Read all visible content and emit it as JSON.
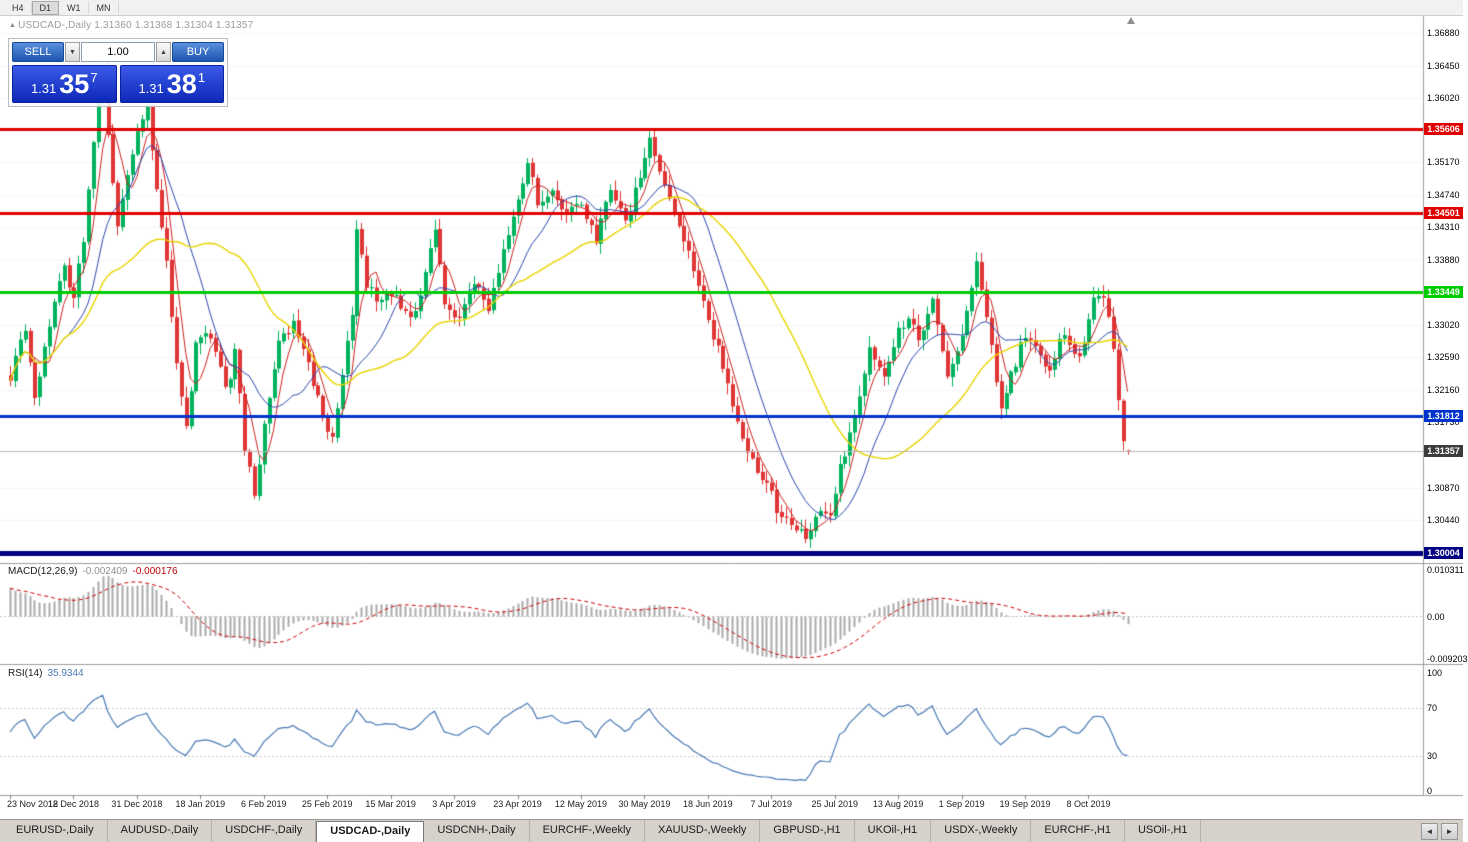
{
  "toolbar": {
    "timeframes": [
      {
        "label": "H4",
        "active": false
      },
      {
        "label": "D1",
        "active": true
      },
      {
        "label": "W1",
        "active": false
      },
      {
        "label": "MN",
        "active": false
      }
    ]
  },
  "chart_header": {
    "symbol": "USDCAD-,Daily",
    "ohlc": "1.31360 1.31368 1.31304 1.31357"
  },
  "trade_panel": {
    "sell_label": "SELL",
    "buy_label": "BUY",
    "volume": "1.00",
    "sell_price": {
      "big": "1.31",
      "pips": "35",
      "sup": "7"
    },
    "buy_price": {
      "big": "1.31",
      "pips": "38",
      "sup": "1"
    }
  },
  "price_axis": {
    "ticks": [
      "1.36880",
      "1.36450",
      "1.36020",
      "1.35170",
      "1.34740",
      "1.34310",
      "1.33880",
      "1.33020",
      "1.32590",
      "1.32160",
      "1.31730",
      "1.30870",
      "1.30440"
    ],
    "tick_prices": [
      1.3688,
      1.3645,
      1.3602,
      1.3517,
      1.3474,
      1.3431,
      1.3388,
      1.3302,
      1.3259,
      1.3216,
      1.3173,
      1.3087,
      1.3044
    ]
  },
  "hlines": [
    {
      "price": 1.35606,
      "label": "1.35606",
      "color": "#e00000",
      "width": 3
    },
    {
      "price": 1.34501,
      "label": "1.34501",
      "color": "#e00000",
      "width": 3
    },
    {
      "price": 1.33449,
      "label": "1.33449",
      "color": "#00cc00",
      "width": 3
    },
    {
      "price": 1.31812,
      "label": "1.31812",
      "color": "#0033cc",
      "width": 3
    },
    {
      "price": 1.30004,
      "label": "1.30004",
      "color": "#000080",
      "width": 5
    }
  ],
  "current_price": {
    "value": 1.31357,
    "label": "1.31357",
    "color": "#3c3c3c"
  },
  "macd_panel": {
    "title": "MACD(12,26,9)",
    "value_main": "-0.002409",
    "value_signal": "-0.000176",
    "axis": [
      "0.010311",
      "0.00",
      "-0.009203"
    ]
  },
  "rsi_panel": {
    "title": "RSI(14)",
    "value": "35.9344",
    "axis": [
      "100",
      "70",
      "30",
      "0"
    ]
  },
  "time_axis": [
    "23 Nov 2018",
    "12 Dec 2018",
    "31 Dec 2018",
    "18 Jan 2019",
    "6 Feb 2019",
    "25 Feb 2019",
    "15 Mar 2019",
    "3 Apr 2019",
    "23 Apr 2019",
    "12 May 2019",
    "30 May 2019",
    "18 Jun 2019",
    "7 Jul 2019",
    "25 Jul 2019",
    "13 Aug 2019",
    "1 Sep 2019",
    "19 Sep 2019",
    "8 Oct 2019"
  ],
  "tabs": {
    "items": [
      {
        "label": "EURUSD-,Daily",
        "active": false
      },
      {
        "label": "AUDUSD-,Daily",
        "active": false
      },
      {
        "label": "USDCHF-,Daily",
        "active": false
      },
      {
        "label": "USDCAD-,Daily",
        "active": true
      },
      {
        "label": "USDCNH-,Daily",
        "active": false
      },
      {
        "label": "EURCHF-,Weekly",
        "active": false
      },
      {
        "label": "XAUUSD-,Weekly",
        "active": false
      },
      {
        "label": "GBPUSD-,H1",
        "active": false
      },
      {
        "label": "UKOil-,H1",
        "active": false
      },
      {
        "label": "USDX-,Weekly",
        "active": false
      },
      {
        "label": "EURCHF-,H1",
        "active": false
      },
      {
        "label": "USOil-,H1",
        "active": false
      }
    ]
  },
  "icons": {
    "chart_icon": "▲",
    "dropdown_down": "▼",
    "dropdown_up": "▲",
    "tab_scroll_left": "◄",
    "tab_scroll_right": "►"
  },
  "chart_data": {
    "type": "candlestick",
    "symbol": "USDCAD",
    "timeframe": "Daily",
    "bars_visible": 230,
    "price_axis_range": [
      1.2985,
      1.3695
    ],
    "ohlc_current": {
      "open": 1.3136,
      "high": 1.31368,
      "low": 1.31304,
      "close": 1.31357
    },
    "close_path_anchors": [
      [
        0,
        1.3235
      ],
      [
        3,
        1.329
      ],
      [
        5,
        1.3215
      ],
      [
        8,
        1.33
      ],
      [
        11,
        1.338
      ],
      [
        13,
        1.334
      ],
      [
        15,
        1.342
      ],
      [
        17,
        1.354
      ],
      [
        19,
        1.365
      ],
      [
        20,
        1.356
      ],
      [
        22,
        1.343
      ],
      [
        24,
        1.349
      ],
      [
        26,
        1.356
      ],
      [
        28,
        1.36
      ],
      [
        30,
        1.349
      ],
      [
        32,
        1.338
      ],
      [
        34,
        1.325
      ],
      [
        36,
        1.317
      ],
      [
        38,
        1.327
      ],
      [
        41,
        1.329
      ],
      [
        44,
        1.322
      ],
      [
        46,
        1.326
      ],
      [
        48,
        1.314
      ],
      [
        50,
        1.3075
      ],
      [
        52,
        1.318
      ],
      [
        55,
        1.327
      ],
      [
        58,
        1.331
      ],
      [
        60,
        1.327
      ],
      [
        63,
        1.32
      ],
      [
        66,
        1.3155
      ],
      [
        68,
        1.323
      ],
      [
        70,
        1.331
      ],
      [
        71,
        1.343
      ],
      [
        73,
        1.336
      ],
      [
        76,
        1.333
      ],
      [
        79,
        1.334
      ],
      [
        82,
        1.331
      ],
      [
        85,
        1.336
      ],
      [
        87,
        1.343
      ],
      [
        89,
        1.333
      ],
      [
        92,
        1.331
      ],
      [
        95,
        1.336
      ],
      [
        98,
        1.333
      ],
      [
        101,
        1.339
      ],
      [
        104,
        1.348
      ],
      [
        106,
        1.352
      ],
      [
        108,
        1.346
      ],
      [
        111,
        1.349
      ],
      [
        114,
        1.345
      ],
      [
        117,
        1.346
      ],
      [
        120,
        1.342
      ],
      [
        123,
        1.347
      ],
      [
        126,
        1.344
      ],
      [
        129,
        1.35
      ],
      [
        131,
        1.355
      ],
      [
        133,
        1.351
      ],
      [
        136,
        1.345
      ],
      [
        139,
        1.339
      ],
      [
        142,
        1.334
      ],
      [
        144,
        1.329
      ],
      [
        147,
        1.322
      ],
      [
        150,
        1.315
      ],
      [
        153,
        1.31
      ],
      [
        156,
        1.308
      ],
      [
        158,
        1.305
      ],
      [
        161,
        1.303
      ],
      [
        163,
        1.302
      ],
      [
        166,
        1.306
      ],
      [
        168,
        1.304
      ],
      [
        170,
        1.311
      ],
      [
        173,
        1.319
      ],
      [
        176,
        1.326
      ],
      [
        179,
        1.323
      ],
      [
        182,
        1.329
      ],
      [
        184,
        1.331
      ],
      [
        186,
        1.328
      ],
      [
        189,
        1.333
      ],
      [
        192,
        1.323
      ],
      [
        195,
        1.329
      ],
      [
        198,
        1.338
      ],
      [
        200,
        1.331
      ],
      [
        203,
        1.319
      ],
      [
        205,
        1.323
      ],
      [
        208,
        1.329
      ],
      [
        210,
        1.327
      ],
      [
        213,
        1.324
      ],
      [
        216,
        1.329
      ],
      [
        219,
        1.326
      ],
      [
        222,
        1.333
      ],
      [
        224,
        1.334
      ],
      [
        226,
        1.328
      ],
      [
        228,
        1.314
      ],
      [
        229,
        1.3136
      ]
    ],
    "moving_averages": [
      {
        "period": 5,
        "color": "#cc2222"
      },
      {
        "period": 13,
        "color": "#2b48b0"
      },
      {
        "period": 34,
        "color": "#e8d400"
      }
    ],
    "indicators": [
      {
        "name": "MACD",
        "params": [
          12,
          26,
          9
        ],
        "values": [
          -0.002409,
          -0.000176
        ],
        "range": [
          -0.009203,
          0.010311
        ]
      },
      {
        "name": "RSI",
        "params": [
          14
        ],
        "value": 35.9344,
        "levels": [
          30,
          70
        ]
      }
    ],
    "horizontal_lines": [
      1.35606,
      1.34501,
      1.33449,
      1.31812,
      1.30004
    ],
    "colors": {
      "bull": "#00b25d",
      "bear": "#df3535",
      "macd_hist": "#ababab",
      "macd_signal": "#cc0000",
      "rsi_line": "#4a7ab5"
    }
  }
}
